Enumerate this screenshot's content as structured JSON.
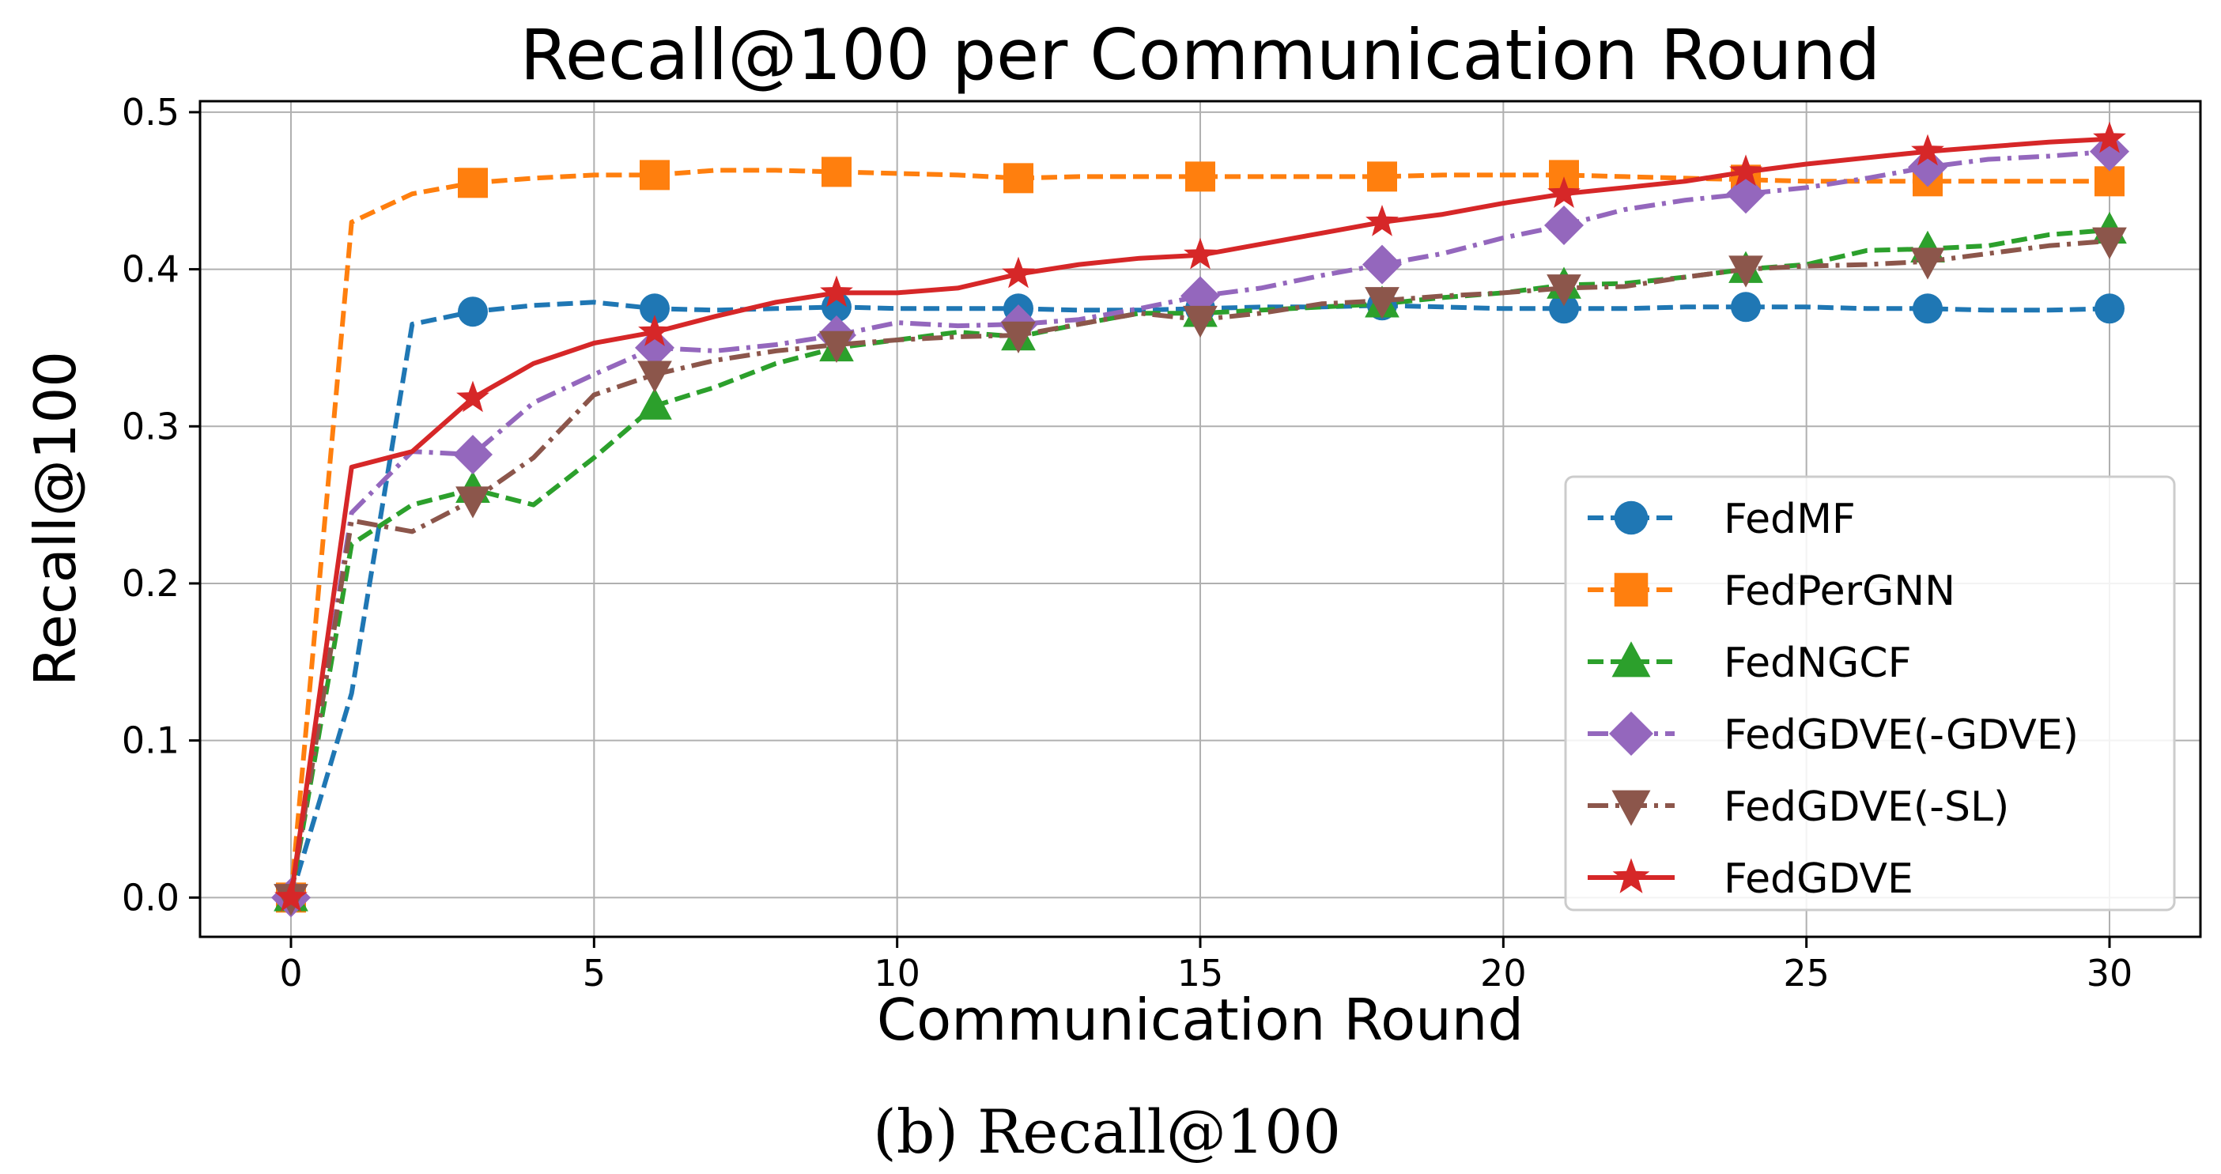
{
  "chart_data": {
    "type": "line",
    "title": "Recall@100 per Communication Round",
    "xlabel": "Communication Round",
    "ylabel": "Recall@100",
    "caption": "(b) Recall@100",
    "xlim": [
      -1.5,
      31.5
    ],
    "ylim": [
      -0.025,
      0.507
    ],
    "xticks": [
      0,
      5,
      10,
      15,
      20,
      25,
      30
    ],
    "yticks": [
      0.0,
      0.1,
      0.2,
      0.3,
      0.4,
      0.5
    ],
    "ytick_labels": [
      "0.0",
      "0.1",
      "0.2",
      "0.3",
      "0.4",
      "0.5"
    ],
    "grid": true,
    "legend_position": "lower-right",
    "x": [
      0,
      1,
      2,
      3,
      4,
      5,
      6,
      7,
      8,
      9,
      10,
      11,
      12,
      13,
      14,
      15,
      16,
      17,
      18,
      19,
      20,
      21,
      22,
      23,
      24,
      25,
      26,
      27,
      28,
      29,
      30
    ],
    "marker_every": 3,
    "series": [
      {
        "name": "FedMF",
        "color": "#1f77b4",
        "dash": "dashed",
        "marker": "circle",
        "values": [
          0.0,
          0.13,
          0.365,
          0.373,
          0.377,
          0.379,
          0.375,
          0.374,
          0.375,
          0.376,
          0.375,
          0.375,
          0.375,
          0.374,
          0.374,
          0.375,
          0.376,
          0.376,
          0.377,
          0.376,
          0.375,
          0.375,
          0.375,
          0.376,
          0.376,
          0.376,
          0.375,
          0.375,
          0.374,
          0.374,
          0.375
        ]
      },
      {
        "name": "FedPerGNN",
        "color": "#ff7f0e",
        "dash": "dashed",
        "marker": "square",
        "values": [
          0.0,
          0.43,
          0.448,
          0.455,
          0.458,
          0.46,
          0.46,
          0.463,
          0.463,
          0.462,
          0.461,
          0.46,
          0.458,
          0.459,
          0.459,
          0.459,
          0.459,
          0.459,
          0.459,
          0.46,
          0.46,
          0.46,
          0.459,
          0.458,
          0.457,
          0.456,
          0.456,
          0.456,
          0.456,
          0.456,
          0.456
        ]
      },
      {
        "name": "FedNGCF",
        "color": "#2ca02c",
        "dash": "dashed",
        "marker": "triangle-up",
        "values": [
          0.0,
          0.225,
          0.25,
          0.26,
          0.25,
          0.28,
          0.313,
          0.325,
          0.34,
          0.35,
          0.355,
          0.36,
          0.357,
          0.365,
          0.372,
          0.372,
          0.374,
          0.376,
          0.378,
          0.382,
          0.385,
          0.39,
          0.391,
          0.395,
          0.4,
          0.403,
          0.412,
          0.413,
          0.415,
          0.422,
          0.425
        ]
      },
      {
        "name": "FedGDVE(-GDVE)",
        "color": "#9467bd",
        "dash": "dashdot",
        "marker": "diamond",
        "values": [
          0.0,
          0.245,
          0.284,
          0.282,
          0.315,
          0.333,
          0.35,
          0.348,
          0.352,
          0.358,
          0.366,
          0.364,
          0.365,
          0.368,
          0.375,
          0.383,
          0.388,
          0.396,
          0.403,
          0.41,
          0.42,
          0.428,
          0.438,
          0.444,
          0.448,
          0.452,
          0.458,
          0.465,
          0.47,
          0.472,
          0.475
        ]
      },
      {
        "name": "FedGDVE(-SL)",
        "color": "#8c564b",
        "dash": "dashdot",
        "marker": "triangle-down",
        "values": [
          0.0,
          0.24,
          0.233,
          0.253,
          0.28,
          0.32,
          0.333,
          0.342,
          0.348,
          0.352,
          0.355,
          0.357,
          0.358,
          0.365,
          0.372,
          0.368,
          0.372,
          0.378,
          0.38,
          0.383,
          0.385,
          0.388,
          0.389,
          0.395,
          0.4,
          0.402,
          0.403,
          0.405,
          0.41,
          0.415,
          0.418
        ]
      },
      {
        "name": "FedGDVE",
        "color": "#d62728",
        "dash": "solid",
        "marker": "star",
        "values": [
          0.0,
          0.274,
          0.284,
          0.318,
          0.34,
          0.353,
          0.36,
          0.37,
          0.379,
          0.385,
          0.385,
          0.388,
          0.397,
          0.403,
          0.407,
          0.409,
          0.416,
          0.423,
          0.43,
          0.435,
          0.442,
          0.448,
          0.452,
          0.456,
          0.462,
          0.467,
          0.471,
          0.475,
          0.478,
          0.481,
          0.483
        ]
      }
    ]
  }
}
